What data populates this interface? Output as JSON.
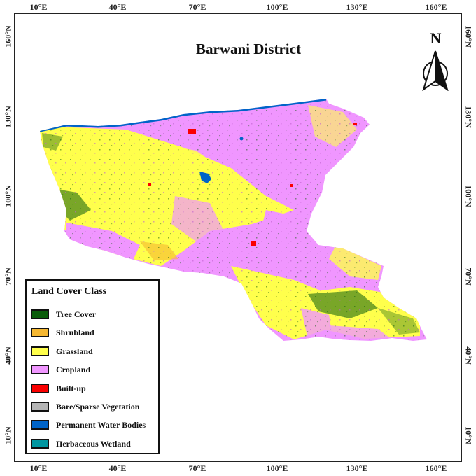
{
  "map": {
    "title": "Barwani District",
    "north_label": "N",
    "x_ticks": [
      "10°E",
      "40°E",
      "70°E",
      "100°E",
      "130°E",
      "160°E"
    ],
    "y_ticks": [
      "160°N",
      "130°N",
      "100°N",
      "70°N",
      "40°N",
      "10°N"
    ]
  },
  "legend": {
    "title": "Land Cover Class",
    "items": [
      {
        "label": "Tree Cover",
        "color": "#0b5d0b"
      },
      {
        "label": "Shrubland",
        "color": "#f5b731"
      },
      {
        "label": "Grassland",
        "color": "#ffff4c"
      },
      {
        "label": "Cropland",
        "color": "#f096ff"
      },
      {
        "label": "Built-up",
        "color": "#fa0000"
      },
      {
        "label": "Bare/Sparse Vegetation",
        "color": "#b4b4b4"
      },
      {
        "label": "Permanent Water Bodies",
        "color": "#0064c8"
      },
      {
        "label": "Herbaceous Wetland",
        "color": "#0096a0"
      }
    ]
  }
}
